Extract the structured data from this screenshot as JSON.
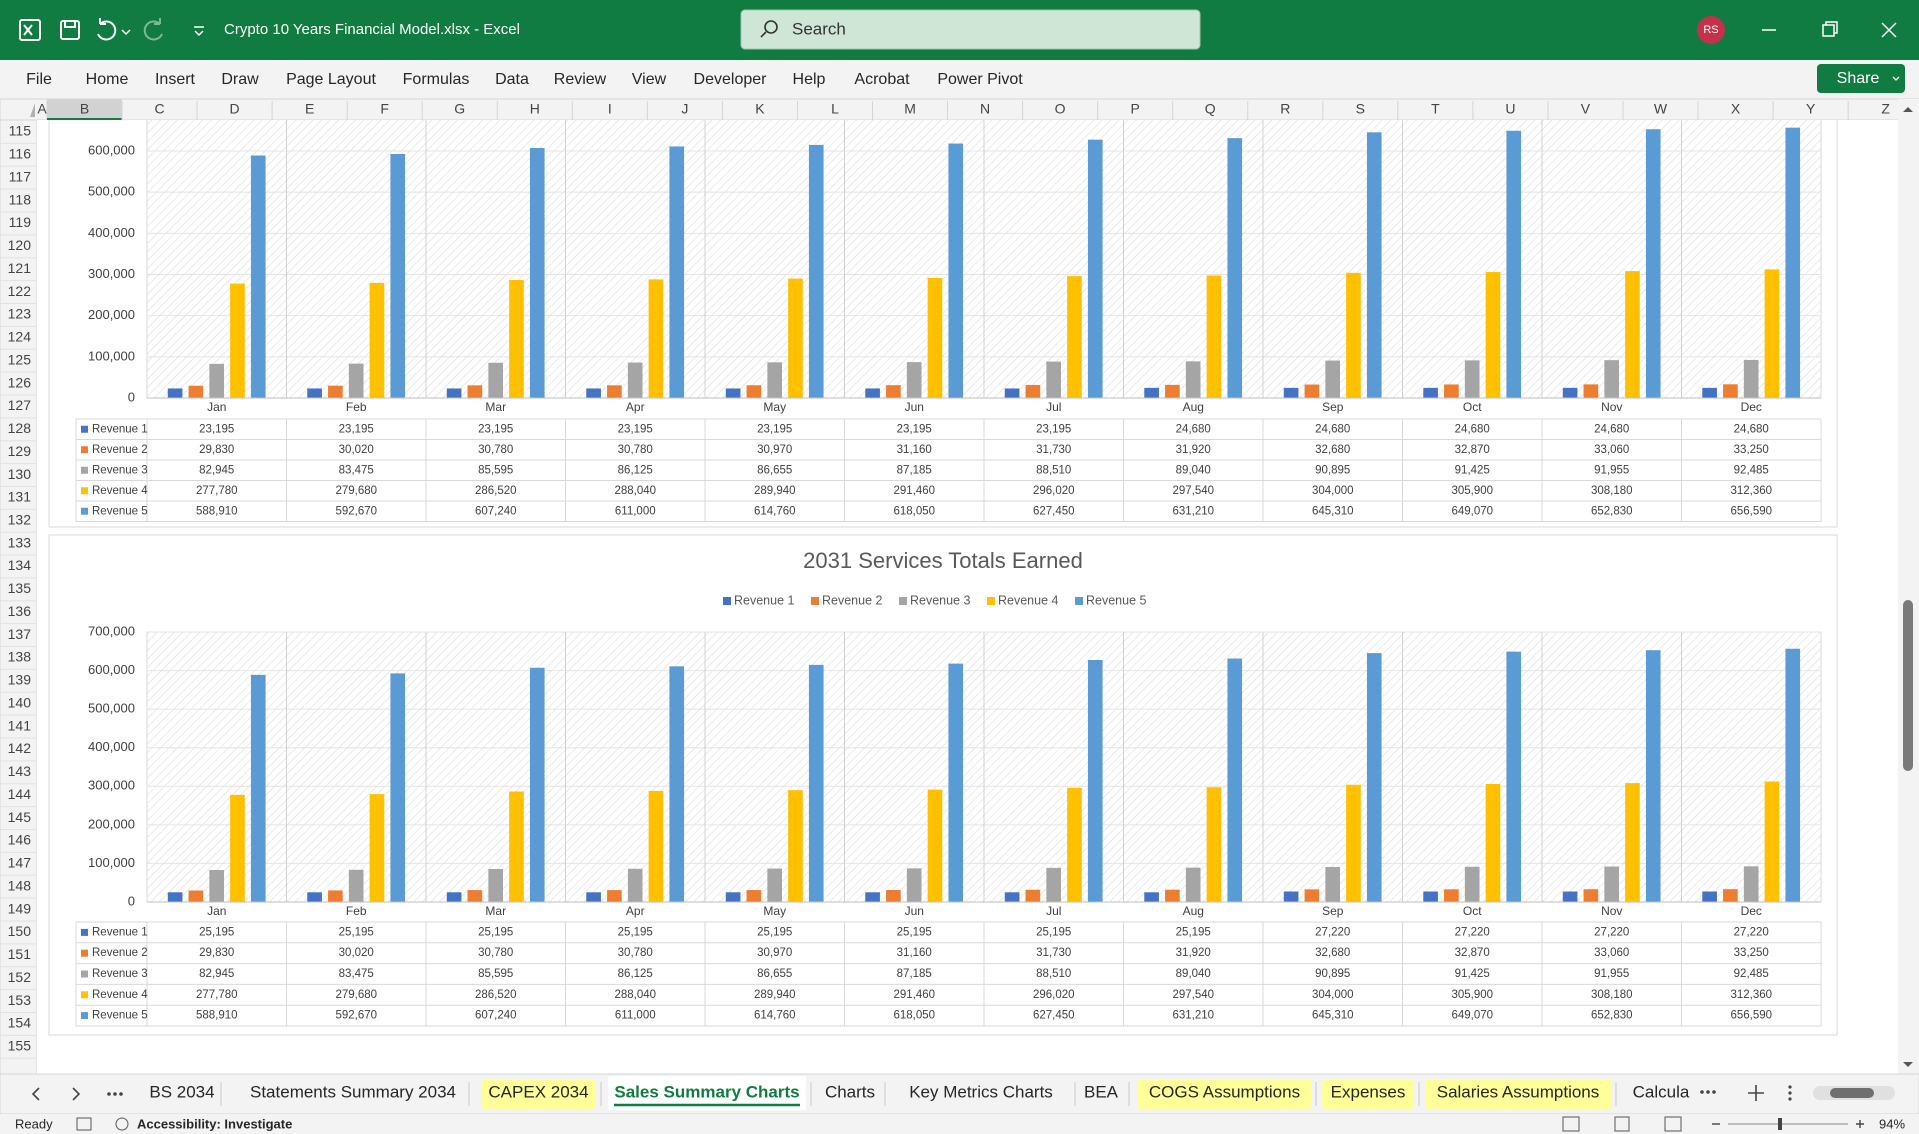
{
  "title_bar": {
    "title": "Crypto 10 Years Financial Model.xlsx  -  Excel",
    "search": "Search",
    "user": "RS"
  },
  "ribbon": {
    "tabs": [
      "File",
      "Home",
      "Insert",
      "Draw",
      "Page Layout",
      "Formulas",
      "Data",
      "Review",
      "View",
      "Developer",
      "Help",
      "Acrobat",
      "Power Pivot"
    ],
    "share": "Share"
  },
  "column_headers": [
    "A",
    "B",
    "C",
    "D",
    "E",
    "F",
    "G",
    "H",
    "I",
    "J",
    "K",
    "L",
    "M",
    "N",
    "O",
    "P",
    "Q",
    "R",
    "S",
    "T",
    "U",
    "V",
    "W",
    "X",
    "Y",
    "Z"
  ],
  "row_numbers": [
    115,
    116,
    117,
    118,
    119,
    120,
    121,
    122,
    123,
    124,
    125,
    126,
    127,
    128,
    129,
    130,
    131,
    132,
    133,
    134,
    135,
    136,
    137,
    138,
    139,
    140,
    141,
    142,
    143,
    144,
    145,
    146,
    147,
    148,
    149,
    150,
    151,
    152,
    153,
    154,
    155
  ],
  "charts": [
    {
      "type": "bar",
      "categories": [
        "Jan",
        "Feb",
        "Mar",
        "Apr",
        "May",
        "Jun",
        "Jul",
        "Aug",
        "Sep",
        "Oct",
        "Nov",
        "Dec"
      ],
      "series": [
        {
          "name": "Revenue 1",
          "color": "#4472c4",
          "values": [
            23195,
            23195,
            23195,
            23195,
            23195,
            23195,
            23195,
            24680,
            24680,
            24680,
            24680,
            24680
          ],
          "value_labels": [
            "23,195",
            "23,195",
            "23,195",
            "23,195",
            "23,195",
            "23,195",
            "23,195",
            "24,680",
            "24,680",
            "24,680",
            "24,680",
            "24,680"
          ]
        },
        {
          "name": "Revenue 2",
          "color": "#ed7d31",
          "values": [
            29830,
            30020,
            30780,
            30780,
            30970,
            31160,
            31730,
            31920,
            32680,
            32870,
            33060,
            33250
          ],
          "value_labels": [
            "29,830",
            "30,020",
            "30,780",
            "30,780",
            "30,970",
            "31,160",
            "31,730",
            "31,920",
            "32,680",
            "32,870",
            "33,060",
            "33,250"
          ]
        },
        {
          "name": "Revenue 3",
          "color": "#a5a5a5",
          "values": [
            82945,
            83475,
            85595,
            86125,
            86655,
            87185,
            88510,
            89040,
            90895,
            91425,
            91955,
            92485
          ],
          "value_labels": [
            "82,945",
            "83,475",
            "85,595",
            "86,125",
            "86,655",
            "87,185",
            "88,510",
            "89,040",
            "90,895",
            "91,425",
            "91,955",
            "92,485"
          ]
        },
        {
          "name": "Revenue 4",
          "color": "#ffc000",
          "values": [
            277780,
            279680,
            286520,
            288040,
            289940,
            291460,
            296020,
            297540,
            304000,
            305900,
            308180,
            312360
          ],
          "value_labels": [
            "277,780",
            "279,680",
            "286,520",
            "288,040",
            "289,940",
            "291,460",
            "296,020",
            "297,540",
            "304,000",
            "305,900",
            "308,180",
            "312,360"
          ]
        },
        {
          "name": "Revenue 5",
          "color": "#5b9bd5",
          "values": [
            588910,
            592670,
            607240,
            611000,
            614760,
            618050,
            627450,
            631210,
            645310,
            649070,
            652830,
            656590
          ],
          "value_labels": [
            "588,910",
            "592,670",
            "607,240",
            "611,000",
            "614,760",
            "618,050",
            "627,450",
            "631,210",
            "645,310",
            "649,070",
            "652,830",
            "656,590"
          ]
        }
      ],
      "ylim": [
        0,
        700000
      ],
      "yticks": [
        0,
        {
          "value": 100000,
          "label": "100,000"
        },
        {
          "value": 200000,
          "label": "200,000"
        },
        {
          "value": 300000,
          "label": "300,000"
        },
        {
          "value": 400000,
          "label": "400,000"
        },
        {
          "value": 500000,
          "label": "500,000"
        },
        {
          "value": 600000,
          "label": "600,000"
        }
      ],
      "grid": true,
      "data_table": true
    },
    {
      "type": "bar",
      "title": "2031 Services Totals Earned",
      "legend": "top",
      "categories": [
        "Jan",
        "Feb",
        "Mar",
        "Apr",
        "May",
        "Jun",
        "Jul",
        "Aug",
        "Sep",
        "Oct",
        "Nov",
        "Dec"
      ],
      "series": [
        {
          "name": "Revenue 1",
          "color": "#4472c4",
          "values": [
            25195,
            25195,
            25195,
            25195,
            25195,
            25195,
            25195,
            25195,
            27220,
            27220,
            27220,
            27220
          ],
          "value_labels": [
            "25,195",
            "25,195",
            "25,195",
            "25,195",
            "25,195",
            "25,195",
            "25,195",
            "25,195",
            "27,220",
            "27,220",
            "27,220",
            "27,220"
          ]
        },
        {
          "name": "Revenue 2",
          "color": "#ed7d31",
          "values": [
            29830,
            30020,
            30780,
            30780,
            30970,
            31160,
            31730,
            31920,
            32680,
            32870,
            33060,
            33250
          ],
          "value_labels": [
            "29,830",
            "30,020",
            "30,780",
            "30,780",
            "30,970",
            "31,160",
            "31,730",
            "31,920",
            "32,680",
            "32,870",
            "33,060",
            "33,250"
          ]
        },
        {
          "name": "Revenue 3",
          "color": "#a5a5a5",
          "values": [
            82945,
            83475,
            85595,
            86125,
            86655,
            87185,
            88510,
            89040,
            90895,
            91425,
            91955,
            92485
          ],
          "value_labels": [
            "82,945",
            "83,475",
            "85,595",
            "86,125",
            "86,655",
            "87,185",
            "88,510",
            "89,040",
            "90,895",
            "91,425",
            "91,955",
            "92,485"
          ]
        },
        {
          "name": "Revenue 4",
          "color": "#ffc000",
          "values": [
            277780,
            279680,
            286520,
            288040,
            289940,
            291460,
            296020,
            297540,
            304000,
            305900,
            308180,
            312360
          ],
          "value_labels": [
            "277,780",
            "279,680",
            "286,520",
            "288,040",
            "289,940",
            "291,460",
            "296,020",
            "297,540",
            "304,000",
            "305,900",
            "308,180",
            "312,360"
          ]
        },
        {
          "name": "Revenue 5",
          "color": "#5b9bd5",
          "values": [
            588910,
            592670,
            607240,
            611000,
            614760,
            618050,
            627450,
            631210,
            645310,
            649070,
            652830,
            656590
          ],
          "value_labels": [
            "588,910",
            "592,670",
            "607,240",
            "611,000",
            "614,760",
            "618,050",
            "627,450",
            "631,210",
            "645,310",
            "649,070",
            "652,830",
            "656,590"
          ]
        }
      ],
      "ylim": [
        0,
        700000
      ],
      "yticks": [
        0,
        {
          "value": 100000,
          "label": "100,000"
        },
        {
          "value": 200000,
          "label": "200,000"
        },
        {
          "value": 300000,
          "label": "300,000"
        },
        {
          "value": 400000,
          "label": "400,000"
        },
        {
          "value": 500000,
          "label": "500,000"
        },
        {
          "value": 600000,
          "label": "600,000"
        },
        {
          "value": 700000,
          "label": "700,000"
        }
      ],
      "grid": true,
      "data_table": true
    }
  ],
  "sheet_tabs": {
    "tabs": [
      {
        "name": "BS 2034"
      },
      {
        "name": "Statements Summary 2034"
      },
      {
        "name": "CAPEX 2034",
        "color": "#ffff99"
      },
      {
        "name": "Sales Summary Charts"
      },
      {
        "name": "Charts"
      },
      {
        "name": "Key Metrics Charts"
      },
      {
        "name": "BEA"
      },
      {
        "name": "COGS Assumptions",
        "color": "#ffff99"
      },
      {
        "name": "Expenses",
        "color": "#ffff99"
      },
      {
        "name": "Salaries Assumptions",
        "color": "#ffff99"
      },
      {
        "name": "Calcula"
      }
    ],
    "active": 3
  },
  "status_bar": {
    "ready": "Ready",
    "accessibility": "Accessibility: Investigate",
    "zoom": "94%"
  }
}
